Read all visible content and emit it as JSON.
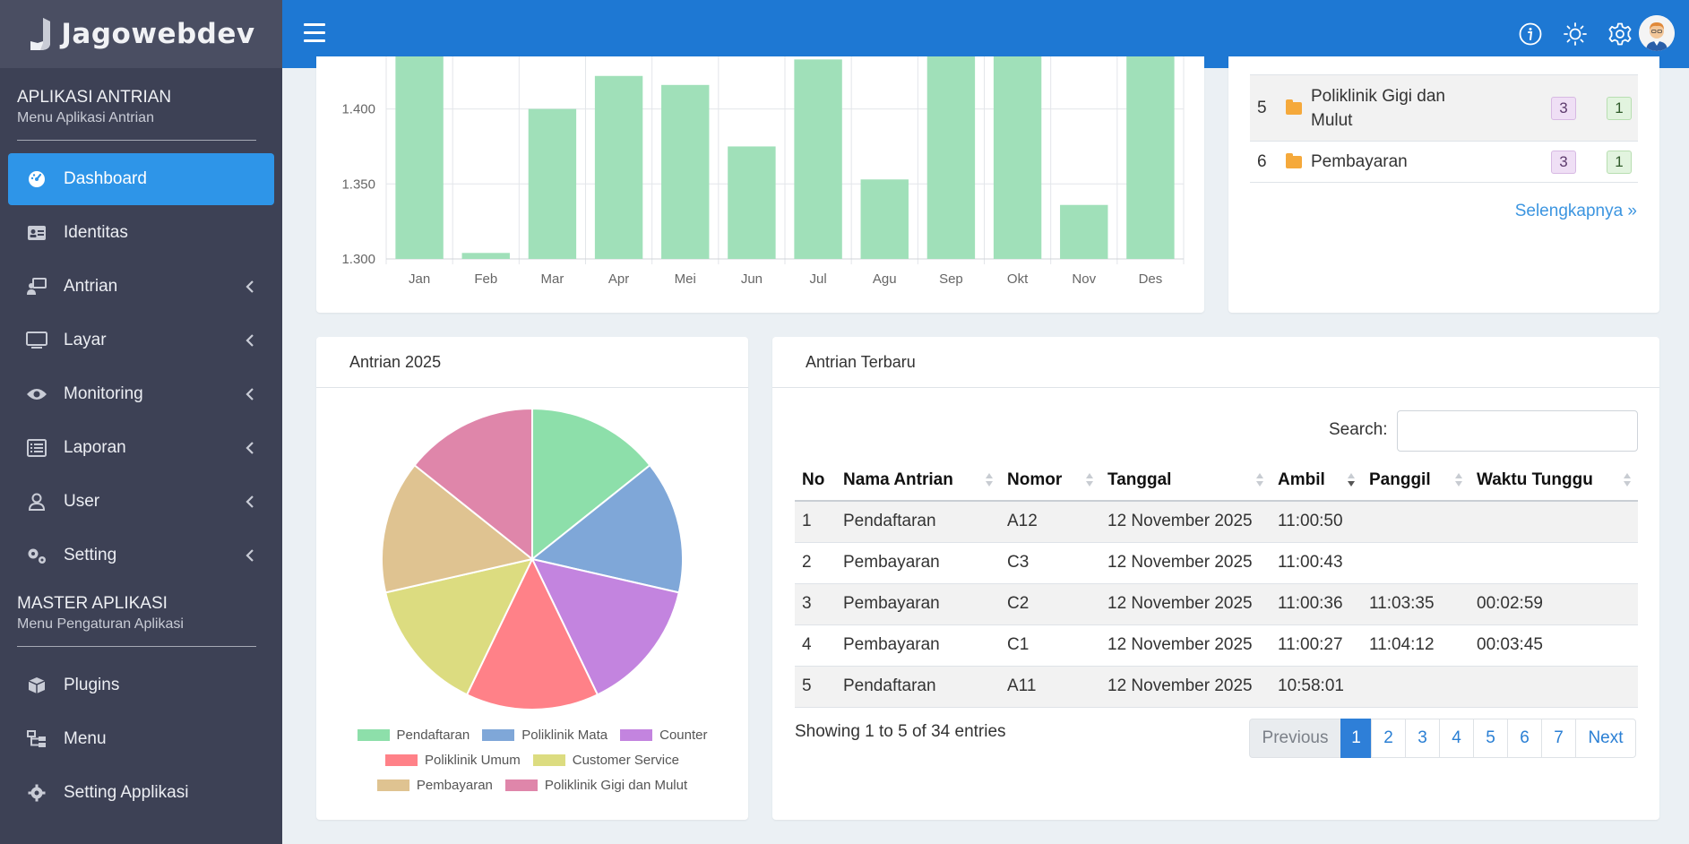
{
  "app": {
    "brand": "Jagowebdev"
  },
  "sidebar": {
    "app_section": {
      "title": "APLIKASI ANTRIAN",
      "subtitle": "Menu Aplikasi Antrian"
    },
    "items": [
      {
        "label": "Dashboard",
        "icon": "dashboard-icon",
        "active": true
      },
      {
        "label": "Identitas",
        "icon": "id-card-icon"
      },
      {
        "label": "Antrian",
        "icon": "queue-person-icon"
      },
      {
        "label": "Layar",
        "icon": "monitor-icon"
      },
      {
        "label": "Monitoring",
        "icon": "eye-icon"
      },
      {
        "label": "Laporan",
        "icon": "list-icon"
      },
      {
        "label": "User",
        "icon": "user-icon"
      },
      {
        "label": "Setting",
        "icon": "gears-icon"
      }
    ],
    "master_section": {
      "title": "MASTER APLIKASI",
      "subtitle": "Menu Pengaturan Aplikasi"
    },
    "master_items": [
      {
        "label": "Plugins",
        "icon": "cube-icon"
      },
      {
        "label": "Menu",
        "icon": "sitemap-icon"
      },
      {
        "label": "Setting Applikasi",
        "icon": "gear-icon"
      }
    ]
  },
  "topbar": {
    "icons": [
      "info-icon",
      "sun-icon",
      "gear-icon",
      "avatar"
    ]
  },
  "colors": {
    "sidebar_bg": "#3d4155",
    "topbar_bg": "#1e78d3",
    "active_item": "#2e95e8",
    "bar_fill": "#a0e0b9"
  },
  "chart_data": [
    {
      "type": "bar",
      "categories": [
        "Jan",
        "Feb",
        "Mar",
        "Apr",
        "Mei",
        "Jun",
        "Jul",
        "Agu",
        "Sep",
        "Okt",
        "Nov",
        "Des"
      ],
      "values": [
        1.435,
        1.304,
        1.4,
        1.422,
        1.416,
        1.375,
        1.433,
        1.353,
        1.45,
        1.45,
        1.336,
        1.45
      ],
      "y_ticks": [
        "1.300",
        "1.350",
        "1.400"
      ],
      "ylim": [
        1.3,
        1.435
      ],
      "grid": true
    },
    {
      "type": "pie",
      "title": "Antrian 2025",
      "labels": [
        "Pendaftaran",
        "Poliklinik Mata",
        "Counter",
        "Poliklinik Umum",
        "Customer Service",
        "Pembayaran",
        "Poliklinik Gigi dan Mulut"
      ],
      "values": [
        1,
        1,
        1,
        1,
        1,
        1,
        1
      ],
      "colors": [
        "#8ddfaa",
        "#7fa7d8",
        "#c384df",
        "#ff8188",
        "#dcdc80",
        "#dfc391",
        "#df86aa"
      ],
      "legend": "bottom"
    }
  ],
  "categories_table": {
    "rows": [
      {
        "no": "5",
        "name": "Poliklinik Gigi dan Mulut",
        "count_a": "3",
        "count_b": "1"
      },
      {
        "no": "6",
        "name": "Pembayaran",
        "count_a": "3",
        "count_b": "1"
      }
    ],
    "more_link": "Selengkapnya »"
  },
  "queue": {
    "title": "Antrian Terbaru",
    "search_label": "Search:",
    "search_value": "",
    "columns": [
      "No",
      "Nama Antrian",
      "Nomor",
      "Tanggal",
      "Ambil",
      "Panggil",
      "Waktu Tunggu"
    ],
    "rows": [
      {
        "no": "1",
        "nama": "Pendaftaran",
        "nomor": "A12",
        "tanggal": "12 November 2025",
        "ambil": "11:00:50",
        "panggil": "",
        "tunggu": ""
      },
      {
        "no": "2",
        "nama": "Pembayaran",
        "nomor": "C3",
        "tanggal": "12 November 2025",
        "ambil": "11:00:43",
        "panggil": "",
        "tunggu": ""
      },
      {
        "no": "3",
        "nama": "Pembayaran",
        "nomor": "C2",
        "tanggal": "12 November 2025",
        "ambil": "11:00:36",
        "panggil": "11:03:35",
        "tunggu": "00:02:59"
      },
      {
        "no": "4",
        "nama": "Pembayaran",
        "nomor": "C1",
        "tanggal": "12 November 2025",
        "ambil": "11:00:27",
        "panggil": "11:04:12",
        "tunggu": "00:03:45"
      },
      {
        "no": "5",
        "nama": "Pendaftaran",
        "nomor": "A11",
        "tanggal": "12 November 2025",
        "ambil": "10:58:01",
        "panggil": "",
        "tunggu": ""
      }
    ],
    "info": "Showing 1 to 5 of 34 entries",
    "pagination": {
      "previous": "Previous",
      "pages": [
        "1",
        "2",
        "3",
        "4",
        "5",
        "6",
        "7"
      ],
      "active": "1",
      "next": "Next"
    }
  }
}
